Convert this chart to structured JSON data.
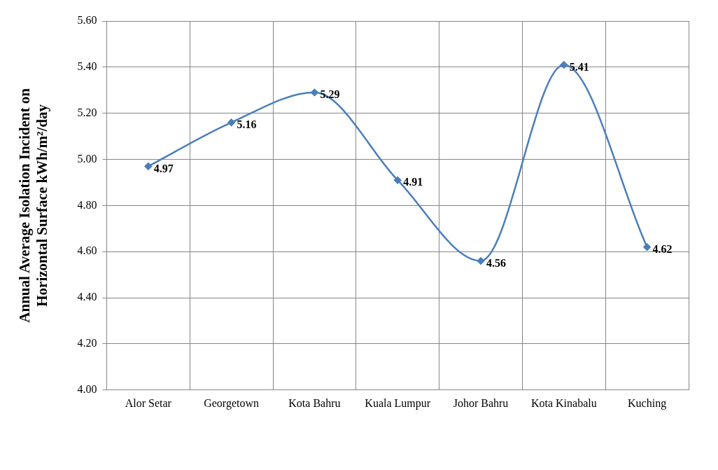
{
  "chart_data": {
    "type": "line",
    "ylabel": "Annual Average Isolation Incident on\nHorizontal Surface kWh/m²/day",
    "categories": [
      "Alor Setar",
      "Georgetown",
      "Kota Bahru",
      "Kuala Lumpur",
      "Johor Bahru",
      "Kota Kinabalu",
      "Kuching"
    ],
    "series": [
      {
        "color": "#4a7ebb",
        "values": [
          4.97,
          5.16,
          5.29,
          4.91,
          4.56,
          5.41,
          4.62
        ]
      }
    ],
    "ylim": [
      4.0,
      5.6
    ],
    "yticks": [
      {
        "value": 4.0,
        "label": "4.00"
      },
      {
        "value": 4.2,
        "label": "4.20"
      },
      {
        "value": 4.4,
        "label": "4.40"
      },
      {
        "value": 4.6,
        "label": "4.60"
      },
      {
        "value": 4.8,
        "label": "4.80"
      },
      {
        "value": 5.0,
        "label": "5.00"
      },
      {
        "value": 5.2,
        "label": "5.20"
      },
      {
        "value": 5.4,
        "label": "5.40"
      },
      {
        "value": 5.6,
        "label": "5.60"
      }
    ],
    "grid": true,
    "marker": "diamond",
    "line_style": "solid",
    "data_labels": true,
    "legend": false
  }
}
